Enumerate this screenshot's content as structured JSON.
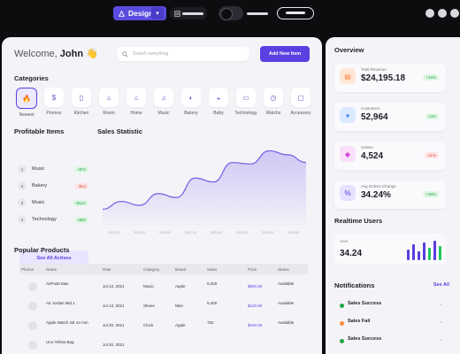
{
  "topbar": {
    "mode_label": "Design"
  },
  "welcome": {
    "greeting": "Welcome,",
    "name": "John",
    "emoji": "👋"
  },
  "search": {
    "placeholder": "Search everything"
  },
  "actions": {
    "add_new_item": "Add New Item"
  },
  "categories": {
    "title": "Categories",
    "items": [
      {
        "label": "Newest",
        "icon": "flame-icon",
        "active": true
      },
      {
        "label": "Promos",
        "icon": "coin-icon"
      },
      {
        "label": "Kitchen",
        "icon": "fridge-icon"
      },
      {
        "label": "Room",
        "icon": "sofa-icon"
      },
      {
        "label": "Home",
        "icon": "home-icon"
      },
      {
        "label": "Music",
        "icon": "headphones-icon"
      },
      {
        "label": "Bakery",
        "icon": "car-icon"
      },
      {
        "label": "Baby",
        "icon": "stroller-icon"
      },
      {
        "label": "Technology",
        "icon": "laptop-icon"
      },
      {
        "label": "Watchs",
        "icon": "watch-icon"
      },
      {
        "label": "Accessory",
        "icon": "monitor-icon"
      }
    ]
  },
  "profitable": {
    "title": "Profitable Items",
    "items": [
      {
        "rank": "1",
        "name": "Music",
        "change": "+$72",
        "trend": "up"
      },
      {
        "rank": "2",
        "name": "Bakery",
        "change": "-$12",
        "trend": "down"
      },
      {
        "rank": "3",
        "name": "Music",
        "change": "+$112",
        "trend": "up"
      },
      {
        "rank": "4",
        "name": "Technology",
        "change": "+$80",
        "trend": "up"
      }
    ],
    "see_all": "See All Actives"
  },
  "sales_statistic": {
    "title": "Sales Statistic",
    "tooltip": "",
    "x_labels": [
      "2022-03",
      "2022-03",
      "2022-03",
      "2022-03",
      "2022-03",
      "2022-03",
      "2022-03",
      "2022-03"
    ]
  },
  "chart_data": {
    "type": "area",
    "values": [
      2,
      3,
      2.5,
      4,
      3.5,
      6,
      5.5,
      8,
      7.8,
      9.5,
      9,
      8
    ]
  },
  "popular": {
    "title": "Popular Products",
    "columns": [
      "Photos",
      "Name",
      "Date",
      "Category",
      "Brand",
      "Sales",
      "Price",
      "Status"
    ],
    "rows": [
      {
        "name": "AirPods Max",
        "date": "Jul 13, 2021",
        "category": "Music",
        "brand": "Apple",
        "sales": "9,400",
        "price": "$900.00",
        "status": "Available"
      },
      {
        "name": "Air Jordan Mid 1",
        "date": "Jul 13, 2021",
        "category": "Shoes",
        "brand": "Nike",
        "sales": "9,400",
        "price": "$120.00",
        "status": "Available"
      },
      {
        "name": "Apple Watch SE 44 mm",
        "date": "Jul 20, 2021",
        "category": "Clock",
        "brand": "Apple",
        "sales": "752",
        "price": "$150.00",
        "status": "Available"
      },
      {
        "name": "Uno Yellow Bag",
        "date": "Jul 20, 2021",
        "category": "",
        "brand": "",
        "sales": "",
        "price": "",
        "status": ""
      }
    ]
  },
  "overview": {
    "title": "Overview",
    "cards": [
      {
        "label": "Total Revenue",
        "value": "$24,195.18",
        "badge": "+10%",
        "trend": "up",
        "icon": "wallet-icon",
        "color": "#ff8a3d",
        "bg": "#ffe6d6"
      },
      {
        "label": "Customers",
        "value": "52,964",
        "badge": "+4%",
        "trend": "up",
        "icon": "user-icon",
        "color": "#4a8cff",
        "bg": "#dde9ff"
      },
      {
        "label": "Orders",
        "value": "4,524",
        "badge": "-11%",
        "trend": "down",
        "icon": "cart-icon",
        "color": "#d64cd8",
        "bg": "#f9dff9"
      },
      {
        "label": "Avg Orders Change",
        "value": "34.24%",
        "badge": "+30%",
        "trend": "up",
        "icon": "percent-icon",
        "color": "#5b3fe0",
        "bg": "#e6e1ff"
      }
    ]
  },
  "realtime": {
    "title": "Realtime Users",
    "label": "User",
    "value": "34.24"
  },
  "notifications": {
    "title": "Notifications",
    "see_all": "See All",
    "items": [
      {
        "title": "Sales Success",
        "color": "#22a745"
      },
      {
        "title": "Sales Fail",
        "color": "#ff8a3d"
      },
      {
        "title": "Sales Success",
        "color": "#22a745"
      }
    ]
  }
}
